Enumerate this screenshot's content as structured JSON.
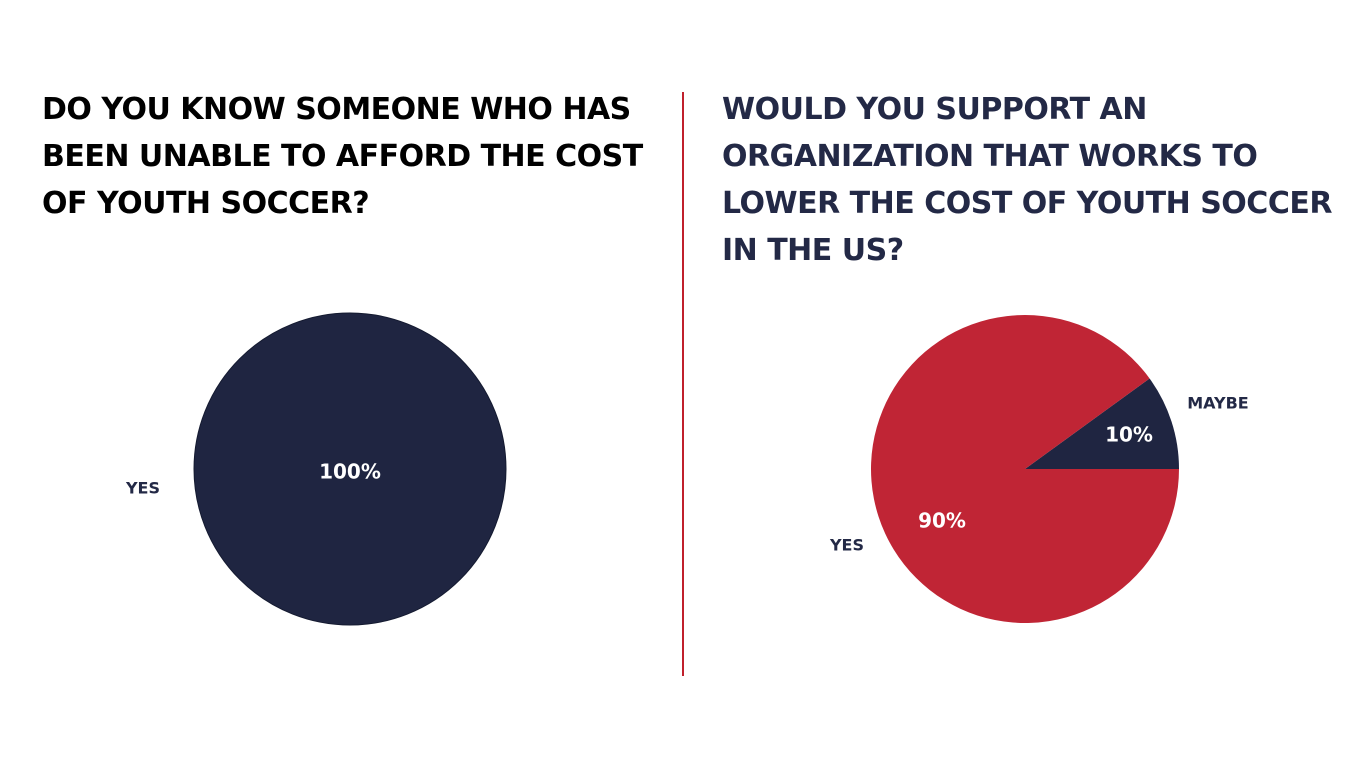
{
  "colors": {
    "navy": "#1f2541",
    "red": "#c02535",
    "divider": "#c0202c",
    "title_left": "#000000",
    "title_right": "#232946",
    "label_dark": "#232946",
    "label_on_slice": "#ffffff"
  },
  "chart_data": [
    {
      "type": "pie",
      "title": "DO YOU KNOW SOMEONE WHO HAS BEEN UNABLE TO AFFORD THE COST OF YOUTH SOCCER?",
      "slices": [
        {
          "label": "YES",
          "value": 100,
          "value_label": "100%",
          "color": "#1f2541"
        }
      ],
      "legend": "none"
    },
    {
      "type": "pie",
      "title": "WOULD YOU SUPPORT AN ORGANIZATION THAT WORKS TO LOWER THE COST OF YOUTH SOCCER IN THE US?",
      "slices": [
        {
          "label": "MAYBE",
          "value": 10,
          "value_label": "10%",
          "color": "#1f2541"
        },
        {
          "label": "YES",
          "value": 90,
          "value_label": "90%",
          "color": "#c02535"
        }
      ],
      "legend": "none"
    }
  ]
}
